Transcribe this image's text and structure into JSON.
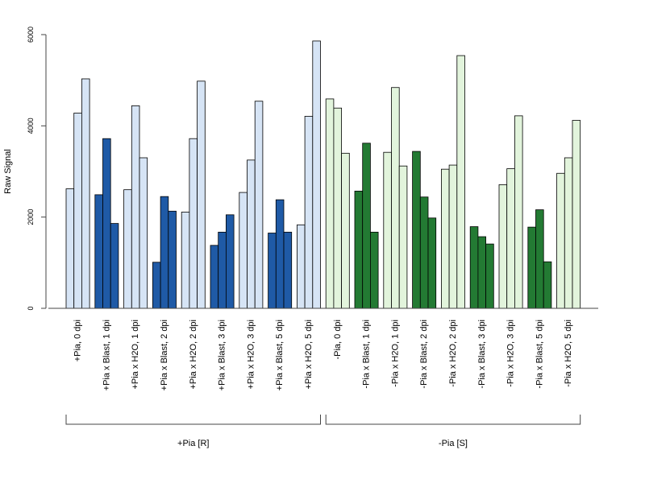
{
  "chart_data": {
    "type": "bar",
    "title": "",
    "xlabel": "",
    "ylabel": "Raw Signal",
    "ylim": [
      0,
      6000
    ],
    "yticks": [
      0,
      2000,
      4000,
      6000
    ],
    "grid": false,
    "legend": "none",
    "colors": {
      "light_blue": "#d6e4f5",
      "dark_blue": "#1f5aa6",
      "light_green": "#e2f4dc",
      "dark_green": "#237a33",
      "stroke": "#000000",
      "axis": "#444444"
    },
    "categories": [
      {
        "label": "+Pia, 0 dpi",
        "values": [
          2620,
          4280,
          5030
        ],
        "color": "light_blue"
      },
      {
        "label": "+Pia x Blast, 1 dpi",
        "values": [
          2490,
          3720,
          1860
        ],
        "color": "dark_blue"
      },
      {
        "label": "+Pia x H2O, 1 dpi",
        "values": [
          2600,
          4440,
          3300
        ],
        "color": "light_blue"
      },
      {
        "label": "+Pia x Blast, 2 dpi",
        "values": [
          1010,
          2450,
          2130
        ],
        "color": "dark_blue"
      },
      {
        "label": "+Pia x H2O, 2 dpi",
        "values": [
          2110,
          3720,
          4980
        ],
        "color": "light_blue"
      },
      {
        "label": "+Pia x Blast, 3 dpi",
        "values": [
          1380,
          1670,
          2050
        ],
        "color": "dark_blue"
      },
      {
        "label": "+Pia x H2O, 3 dpi",
        "values": [
          2540,
          3250,
          4540
        ],
        "color": "light_blue"
      },
      {
        "label": "+Pia x Blast, 5 dpi",
        "values": [
          1650,
          2380,
          1670
        ],
        "color": "dark_blue"
      },
      {
        "label": "+Pia x H2O, 5 dpi",
        "values": [
          1830,
          4210,
          5860
        ],
        "color": "light_blue"
      },
      {
        "label": "-Pia, 0 dpi",
        "values": [
          4590,
          4390,
          3400
        ],
        "color": "light_green"
      },
      {
        "label": "-Pia x Blast, 1 dpi",
        "values": [
          2570,
          3620,
          1670
        ],
        "color": "dark_green"
      },
      {
        "label": "-Pia x H2O, 1 dpi",
        "values": [
          3420,
          4840,
          3120
        ],
        "color": "light_green"
      },
      {
        "label": "-Pia x Blast, 2 dpi",
        "values": [
          3440,
          2440,
          1980
        ],
        "color": "dark_green"
      },
      {
        "label": "-Pia x H2O, 2 dpi",
        "values": [
          3050,
          3140,
          5540
        ],
        "color": "light_green"
      },
      {
        "label": "-Pia x Blast, 3 dpi",
        "values": [
          1790,
          1570,
          1410
        ],
        "color": "dark_green"
      },
      {
        "label": "-Pia x H2O, 3 dpi",
        "values": [
          2710,
          3060,
          4220
        ],
        "color": "light_green"
      },
      {
        "label": "-Pia x Blast, 5 dpi",
        "values": [
          1780,
          2160,
          1020
        ],
        "color": "dark_green"
      },
      {
        "label": "-Pia x H2O, 5 dpi",
        "values": [
          2960,
          3300,
          4120
        ],
        "color": "light_green"
      }
    ],
    "groups": [
      {
        "label": "+Pia [R]",
        "from": 0,
        "to": 8
      },
      {
        "label": "-Pia [S]",
        "from": 9,
        "to": 17
      }
    ]
  }
}
